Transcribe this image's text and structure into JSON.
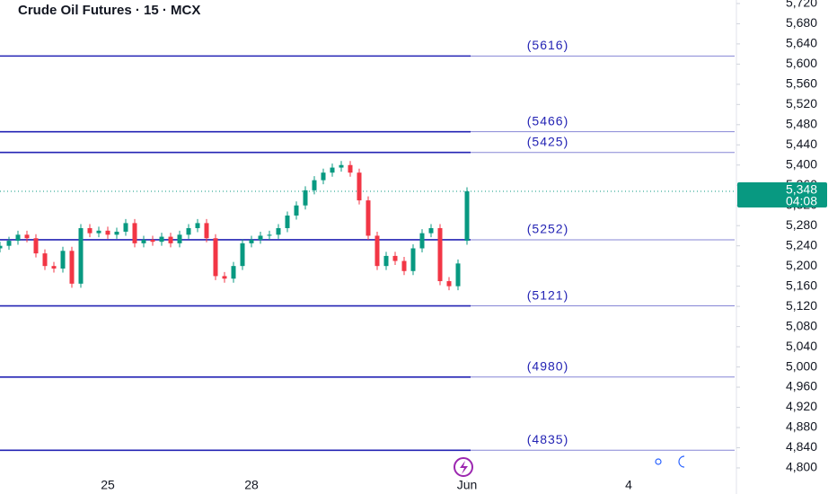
{
  "chart_data": {
    "type": "candlestick",
    "title": "Crude Oil Futures · 15 · MCX",
    "xlim": [
      0,
      82
    ],
    "xticks": [
      {
        "value": 12,
        "label": "25"
      },
      {
        "value": 28,
        "label": "28"
      },
      {
        "value": 52,
        "label": "Jun"
      },
      {
        "value": 70,
        "label": "4"
      }
    ],
    "ylim": [
      4775,
      5727
    ],
    "yticks": [
      {
        "value": 4800,
        "label": "4,800"
      },
      {
        "value": 4840,
        "label": "4,840"
      },
      {
        "value": 4880,
        "label": "4,880"
      },
      {
        "value": 4920,
        "label": "4,920"
      },
      {
        "value": 4960,
        "label": "4,960"
      },
      {
        "value": 5000,
        "label": "5,000"
      },
      {
        "value": 5040,
        "label": "5,040"
      },
      {
        "value": 5080,
        "label": "5,080"
      },
      {
        "value": 5120,
        "label": "5,120"
      },
      {
        "value": 5160,
        "label": "5,160"
      },
      {
        "value": 5200,
        "label": "5,200"
      },
      {
        "value": 5240,
        "label": "5,240"
      },
      {
        "value": 5280,
        "label": "5,280"
      },
      {
        "value": 5320,
        "label": "5,320"
      },
      {
        "value": 5360,
        "label": "5,360"
      },
      {
        "value": 5400,
        "label": "5,400"
      },
      {
        "value": 5440,
        "label": "5,440"
      },
      {
        "value": 5480,
        "label": "5,480"
      },
      {
        "value": 5520,
        "label": "5,520"
      },
      {
        "value": 5560,
        "label": "5,560"
      },
      {
        "value": 5600,
        "label": "5,600"
      },
      {
        "value": 5640,
        "label": "5,640"
      },
      {
        "value": 5680,
        "label": "5,680"
      },
      {
        "value": 5720,
        "label": "5,720"
      }
    ],
    "open": [
      5235,
      5240,
      5250,
      5262,
      5255,
      5225,
      5200,
      5195,
      5230,
      5165,
      5275,
      5265,
      5270,
      5262,
      5268,
      5285,
      5245,
      5252,
      5248,
      5258,
      5245,
      5262,
      5275,
      5285,
      5255,
      5180,
      5175,
      5200,
      5245,
      5252,
      5260,
      5262,
      5275,
      5300,
      5320,
      5350,
      5370,
      5385,
      5395,
      5400,
      5385,
      5330,
      5260,
      5200,
      5220,
      5210,
      5190,
      5235,
      5265,
      5275,
      5170,
      5160,
      5250
    ],
    "high": [
      5248,
      5258,
      5270,
      5270,
      5263,
      5233,
      5208,
      5238,
      5238,
      5283,
      5283,
      5278,
      5278,
      5276,
      5293,
      5293,
      5260,
      5260,
      5266,
      5266,
      5270,
      5283,
      5293,
      5293,
      5263,
      5188,
      5208,
      5253,
      5260,
      5268,
      5270,
      5283,
      5308,
      5328,
      5358,
      5378,
      5393,
      5403,
      5408,
      5408,
      5393,
      5338,
      5268,
      5228,
      5228,
      5218,
      5243,
      5273,
      5283,
      5283,
      5178,
      5213,
      5356
    ],
    "low": [
      5227,
      5232,
      5242,
      5247,
      5217,
      5192,
      5187,
      5187,
      5157,
      5157,
      5257,
      5257,
      5254,
      5254,
      5260,
      5237,
      5237,
      5240,
      5240,
      5237,
      5237,
      5254,
      5267,
      5247,
      5172,
      5167,
      5167,
      5192,
      5237,
      5244,
      5252,
      5254,
      5267,
      5292,
      5312,
      5342,
      5362,
      5377,
      5387,
      5377,
      5322,
      5252,
      5192,
      5192,
      5202,
      5182,
      5182,
      5227,
      5257,
      5162,
      5152,
      5152,
      5242
    ],
    "close": [
      5240,
      5250,
      5262,
      5255,
      5225,
      5200,
      5195,
      5230,
      5165,
      5275,
      5265,
      5270,
      5262,
      5268,
      5285,
      5245,
      5252,
      5248,
      5258,
      5245,
      5262,
      5275,
      5285,
      5255,
      5180,
      5175,
      5200,
      5245,
      5252,
      5260,
      5262,
      5275,
      5300,
      5320,
      5350,
      5370,
      5385,
      5395,
      5400,
      5385,
      5330,
      5260,
      5200,
      5220,
      5210,
      5190,
      5235,
      5265,
      5275,
      5170,
      5160,
      5205,
      5348
    ],
    "up_color": "#089981",
    "down_color": "#f23645",
    "level_color": "#2323b4",
    "levels": [
      {
        "value": 5616,
        "label": "(5616)"
      },
      {
        "value": 5466,
        "label": "(5466)"
      },
      {
        "value": 5425,
        "label": "(5425)"
      },
      {
        "value": 5252,
        "label": "(5252)"
      },
      {
        "value": 5121,
        "label": "(5121)"
      },
      {
        "value": 4980,
        "label": "(4980)"
      },
      {
        "value": 4835,
        "label": "(4835)"
      }
    ],
    "last_price": {
      "value": 5348,
      "label": "5,348"
    },
    "countdown": "04:08"
  }
}
